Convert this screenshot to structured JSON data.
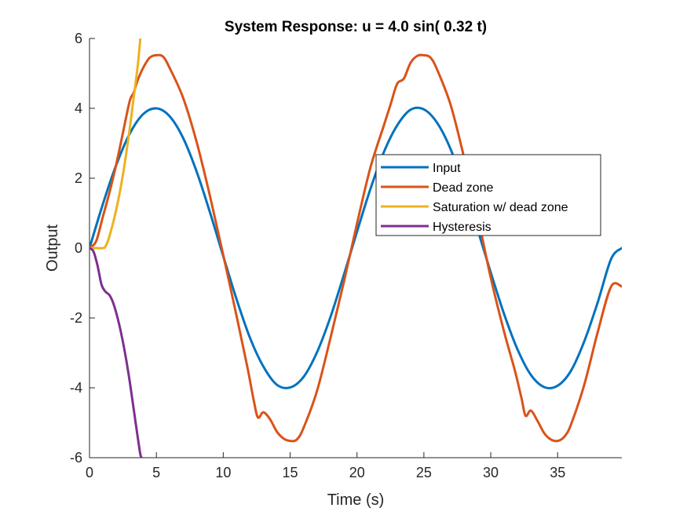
{
  "chart_data": {
    "type": "line",
    "title": "System Response: u = 4.0 sin( 0.32 t)",
    "xlabel": "Time (s)",
    "ylabel": "Output",
    "xlim": [
      0,
      39.8
    ],
    "ylim": [
      -6,
      6
    ],
    "xticks": [
      0,
      5,
      10,
      15,
      20,
      25,
      30,
      35
    ],
    "yticks": [
      -6,
      -4,
      -2,
      0,
      2,
      4,
      6
    ],
    "legend_position": "right-center",
    "grid": false,
    "series": [
      {
        "name": "Input",
        "color": "#0072BD",
        "x": [
          0,
          1,
          2,
          3,
          4,
          5,
          6,
          7,
          8,
          9,
          10,
          11,
          12,
          13,
          14,
          15,
          16,
          17,
          18,
          19,
          20,
          21,
          22,
          23,
          24,
          25,
          26,
          27,
          28,
          29,
          30,
          31,
          32,
          33,
          34,
          35,
          36,
          37,
          38,
          39,
          39.8
        ],
        "y": [
          0,
          1.26,
          2.38,
          3.27,
          3.83,
          4.0,
          3.77,
          3.15,
          2.2,
          1.03,
          -0.23,
          -1.47,
          -2.57,
          -3.39,
          -3.91,
          -3.99,
          -3.69,
          -2.99,
          -1.99,
          -0.79,
          0.47,
          1.69,
          2.74,
          3.51,
          3.96,
          3.97,
          3.58,
          2.83,
          1.76,
          0.55,
          -0.7,
          -1.89,
          -2.9,
          -3.63,
          -3.98,
          -3.94,
          -3.51,
          -2.66,
          -1.55,
          -0.31,
          0.0
        ]
      },
      {
        "name": "Dead zone",
        "color": "#D95319",
        "x": [
          0,
          0.5,
          1,
          1.5,
          2,
          2.5,
          3,
          3.3,
          3.6,
          4,
          4.5,
          5,
          5.5,
          6,
          7,
          8,
          9,
          10,
          11,
          11.8,
          12.3,
          12.6,
          13,
          13.5,
          14,
          14.5,
          15,
          15.5,
          16,
          17,
          18,
          19,
          20,
          21,
          22,
          22.5,
          23,
          23.5,
          24,
          24.5,
          25,
          25.5,
          26,
          27,
          28,
          29,
          30,
          31,
          31.8,
          32.3,
          32.6,
          33,
          33.5,
          34,
          34.5,
          35,
          35.5,
          36,
          37,
          38,
          39,
          39.8
        ],
        "y": [
          0,
          0.2,
          0.9,
          1.6,
          2.4,
          3.3,
          4.2,
          4.45,
          4.8,
          5.15,
          5.45,
          5.52,
          5.48,
          5.15,
          4.3,
          3.05,
          1.5,
          -0.2,
          -1.95,
          -3.4,
          -4.4,
          -4.85,
          -4.7,
          -4.9,
          -5.25,
          -5.45,
          -5.52,
          -5.48,
          -5.15,
          -4.1,
          -2.6,
          -1.0,
          0.7,
          2.3,
          3.5,
          4.1,
          4.7,
          4.85,
          5.3,
          5.5,
          5.52,
          5.45,
          5.1,
          4.1,
          2.6,
          0.95,
          -0.85,
          -2.4,
          -3.5,
          -4.3,
          -4.8,
          -4.65,
          -4.95,
          -5.3,
          -5.48,
          -5.52,
          -5.4,
          -5.05,
          -3.9,
          -2.4,
          -1.1,
          -1.1
        ]
      },
      {
        "name": " Saturation w/ dead zone",
        "color": "#EDB120",
        "x": [
          0,
          0.5,
          1,
          1.2,
          1.5,
          2,
          2.5,
          3,
          3.3,
          3.6,
          3.8
        ],
        "y": [
          0,
          0,
          0,
          0.05,
          0.35,
          1.1,
          2.1,
          3.4,
          4.3,
          5.2,
          6.0
        ]
      },
      {
        "name": "Hysteresis",
        "color": "#7E2F8E",
        "x": [
          0,
          0.3,
          0.6,
          0.9,
          1.2,
          1.5,
          1.8,
          2.1,
          2.4,
          2.7,
          3.0,
          3.3,
          3.6,
          3.8,
          3.9
        ],
        "y": [
          0,
          -0.1,
          -0.5,
          -1.05,
          -1.25,
          -1.35,
          -1.6,
          -2.0,
          -2.5,
          -3.1,
          -3.8,
          -4.6,
          -5.4,
          -5.9,
          -6.0
        ]
      }
    ]
  }
}
